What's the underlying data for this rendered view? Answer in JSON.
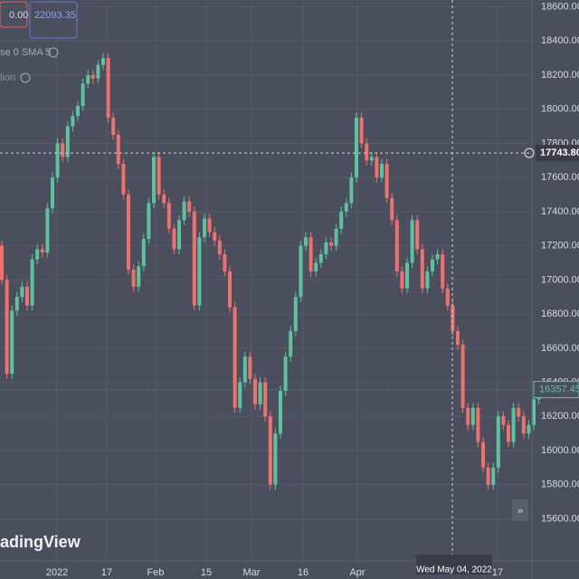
{
  "header": {
    "change": "0.00",
    "price": "22093.35",
    "indicator_1": "se 0 SMA 5",
    "indicator_2": "lion",
    "watermark": "adingView"
  },
  "chart_data": {
    "type": "candlestick",
    "ylim": [
      15380,
      18640
    ],
    "yticks": [
      {
        "value": 18600,
        "label": "18600.00"
      },
      {
        "value": 18400,
        "label": "18400.00"
      },
      {
        "value": 18200,
        "label": "18200.00"
      },
      {
        "value": 18000,
        "label": "18000.00"
      },
      {
        "value": 17800,
        "label": "17800.00"
      },
      {
        "value": 17600,
        "label": "17600.00"
      },
      {
        "value": 17400,
        "label": "17400.00"
      },
      {
        "value": 17200,
        "label": "17200.00"
      },
      {
        "value": 17000,
        "label": "17000.00"
      },
      {
        "value": 16800,
        "label": "16800.00"
      },
      {
        "value": 16600,
        "label": "16600.00"
      },
      {
        "value": 16400,
        "label": "16400.00"
      },
      {
        "value": 16200,
        "label": "16200.00"
      },
      {
        "value": 16000,
        "label": "16000.00"
      },
      {
        "value": 15800,
        "label": "15800.00"
      },
      {
        "value": 15600,
        "label": "15600.00"
      }
    ],
    "xticks": [
      "2022",
      "17",
      "Feb",
      "15",
      "Mar",
      "16",
      "Apr",
      "17"
    ],
    "crosshair": {
      "price": {
        "value": 17743.8,
        "label": "17743.80"
      },
      "date": "Wed May 04, 2022"
    },
    "last_price": 16357.45,
    "up_color": "#5cc3a0",
    "down_color": "#f0706e",
    "grid": true,
    "open": [
      17200,
      17000,
      16450,
      16820,
      16900,
      16960,
      16850,
      17120,
      17180,
      17160,
      17420,
      17600,
      17800,
      17720,
      17900,
      17960,
      18020,
      18150,
      18200,
      18180,
      18260,
      18300,
      17950,
      17850,
      17680,
      17500,
      17060,
      16960,
      17080,
      17240,
      17450,
      17720,
      17500,
      17450,
      17300,
      17180,
      17350,
      17460,
      17400,
      16850,
      17250,
      17360,
      17280,
      17230,
      17150,
      17050,
      16840,
      16250,
      16400,
      16550,
      16420,
      16270,
      16400,
      16200,
      15800,
      16100,
      16350,
      16550,
      16700,
      16900,
      17200,
      17250,
      17050,
      17100,
      17150,
      17220,
      17200,
      17300,
      17400,
      17450,
      17600,
      17950,
      17800,
      17700,
      17720,
      17600,
      17680,
      17480,
      17350,
      17050,
      16950,
      17100,
      17350,
      17180,
      16950,
      17050,
      17120,
      17150,
      16950,
      16850,
      16700,
      16620,
      16250,
      16150,
      16250,
      16050,
      15900,
      15800,
      15900,
      16200,
      16150,
      16050,
      16250,
      16200,
      16100,
      16150,
      16300
    ],
    "high": [
      17230,
      17030,
      16850,
      16930,
      16990,
      16990,
      17150,
      17210,
      17210,
      17450,
      17630,
      17830,
      17830,
      17930,
      17990,
      18050,
      18180,
      18230,
      18230,
      18290,
      18330,
      18330,
      17980,
      17880,
      17710,
      17530,
      17090,
      17110,
      17270,
      17480,
      17750,
      17750,
      17530,
      17480,
      17330,
      17380,
      17490,
      17490,
      17430,
      17280,
      17390,
      17390,
      17310,
      17260,
      17180,
      17080,
      16870,
      16430,
      16580,
      16580,
      16450,
      16430,
      16430,
      16230,
      16130,
      16380,
      16580,
      16730,
      16930,
      17230,
      17280,
      17280,
      17130,
      17180,
      17250,
      17250,
      17330,
      17430,
      17480,
      17630,
      17980,
      17980,
      17830,
      17750,
      17750,
      17710,
      17710,
      17510,
      17380,
      17080,
      17130,
      17380,
      17380,
      17210,
      17080,
      17150,
      17180,
      17180,
      16980,
      16880,
      16730,
      16650,
      16280,
      16280,
      16280,
      16080,
      15930,
      15930,
      16230,
      16230,
      16180,
      16280,
      16280,
      16230,
      16180,
      16330,
      16390
    ],
    "low": [
      16970,
      16420,
      16420,
      16790,
      16870,
      16820,
      16820,
      17090,
      17130,
      17130,
      17390,
      17570,
      17690,
      17690,
      17870,
      17930,
      17990,
      18120,
      18150,
      18150,
      18230,
      17920,
      17820,
      17650,
      17470,
      17030,
      16930,
      16930,
      17050,
      17210,
      17420,
      17470,
      17420,
      17270,
      17150,
      17150,
      17320,
      17370,
      16820,
      16820,
      17220,
      17250,
      17200,
      17120,
      17020,
      16810,
      16220,
      16220,
      16370,
      16390,
      16240,
      16240,
      16170,
      15770,
      15770,
      16070,
      16320,
      16520,
      16670,
      16870,
      17170,
      17020,
      17020,
      17070,
      17120,
      17170,
      17170,
      17270,
      17370,
      17420,
      17570,
      17770,
      17670,
      17670,
      17570,
      17570,
      17450,
      17320,
      17020,
      16920,
      16920,
      17070,
      17150,
      16920,
      16920,
      17020,
      17090,
      16920,
      16820,
      16670,
      16590,
      16220,
      16120,
      16120,
      16020,
      15870,
      15770,
      15770,
      15870,
      16120,
      16020,
      16020,
      16170,
      16070,
      16070,
      16120,
      16270
    ],
    "close": [
      17000,
      16450,
      16820,
      16900,
      16960,
      16850,
      17120,
      17180,
      17160,
      17420,
      17600,
      17800,
      17720,
      17900,
      17960,
      18020,
      18150,
      18200,
      18180,
      18260,
      18300,
      17950,
      17850,
      17680,
      17500,
      17060,
      16960,
      17080,
      17240,
      17450,
      17720,
      17500,
      17450,
      17300,
      17180,
      17350,
      17460,
      17400,
      16850,
      17250,
      17360,
      17280,
      17230,
      17150,
      17050,
      16840,
      16250,
      16400,
      16550,
      16420,
      16270,
      16400,
      16200,
      15800,
      16100,
      16350,
      16550,
      16700,
      16900,
      17200,
      17250,
      17050,
      17100,
      17150,
      17220,
      17200,
      17300,
      17400,
      17450,
      17600,
      17950,
      17800,
      17700,
      17720,
      17600,
      17680,
      17480,
      17350,
      17050,
      16950,
      17100,
      17350,
      17180,
      16950,
      17050,
      17120,
      17150,
      16950,
      16850,
      16700,
      16620,
      16250,
      16150,
      16250,
      16050,
      15900,
      15800,
      15900,
      16200,
      16150,
      16050,
      16250,
      16200,
      16100,
      16150,
      16300,
      16357.45
    ]
  }
}
